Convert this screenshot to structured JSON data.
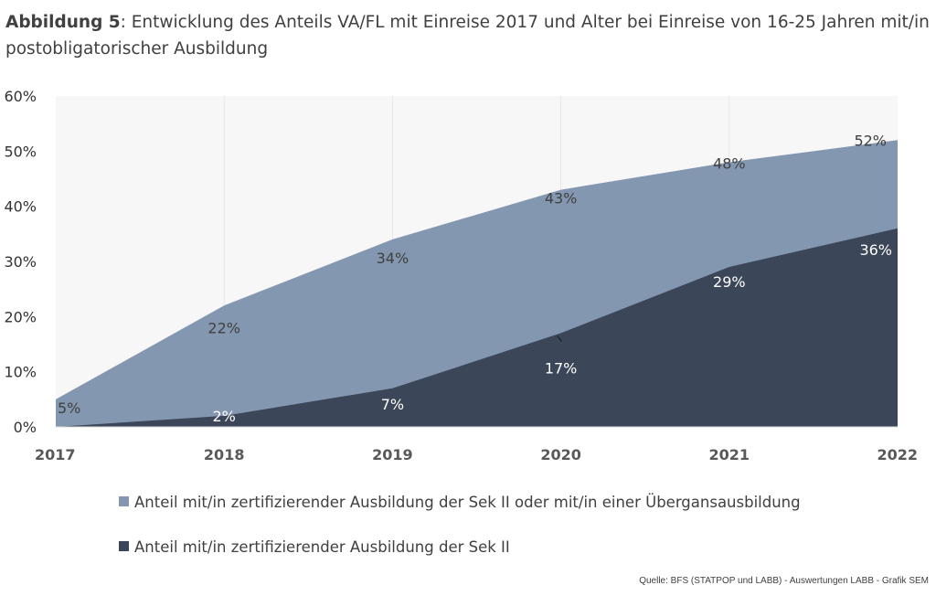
{
  "title": {
    "prefix": "Abbildung 5",
    "text": ": Entwicklung des Anteils VA/FL mit Einreise 2017 und Alter bei Einreise von 16-25 Jahren mit/in postobligatorischer Ausbildung"
  },
  "chart_data": {
    "type": "area",
    "x": [
      "2017",
      "2018",
      "2019",
      "2020",
      "2021",
      "2022"
    ],
    "ylim": [
      0,
      0.6
    ],
    "yticks": [
      "0%",
      "10%",
      "20%",
      "30%",
      "40%",
      "50%",
      "60%"
    ],
    "series": [
      {
        "name": "Anteil mit/in zertifizierender Ausbildung der Sek II oder mit/in einer Übergansausbildung",
        "values": [
          0.05,
          0.22,
          0.34,
          0.43,
          0.48,
          0.52
        ],
        "labels": [
          "5%",
          "22%",
          "34%",
          "43%",
          "48%",
          "52%"
        ],
        "color": "#8497b0"
      },
      {
        "name": "Anteil mit/in zertifizierender Ausbildung der Sek II",
        "values": [
          0.0,
          0.02,
          0.07,
          0.17,
          0.29,
          0.36
        ],
        "labels": [
          "",
          "2%",
          "7%",
          "17%",
          "29%",
          "36%"
        ],
        "color": "#3b4658"
      }
    ],
    "plot_background": "#f7f7f7",
    "grid": true
  },
  "source": "Quelle: BFS (STATPOP und LABB) - Auswertungen LABB -   Grafik SEM"
}
